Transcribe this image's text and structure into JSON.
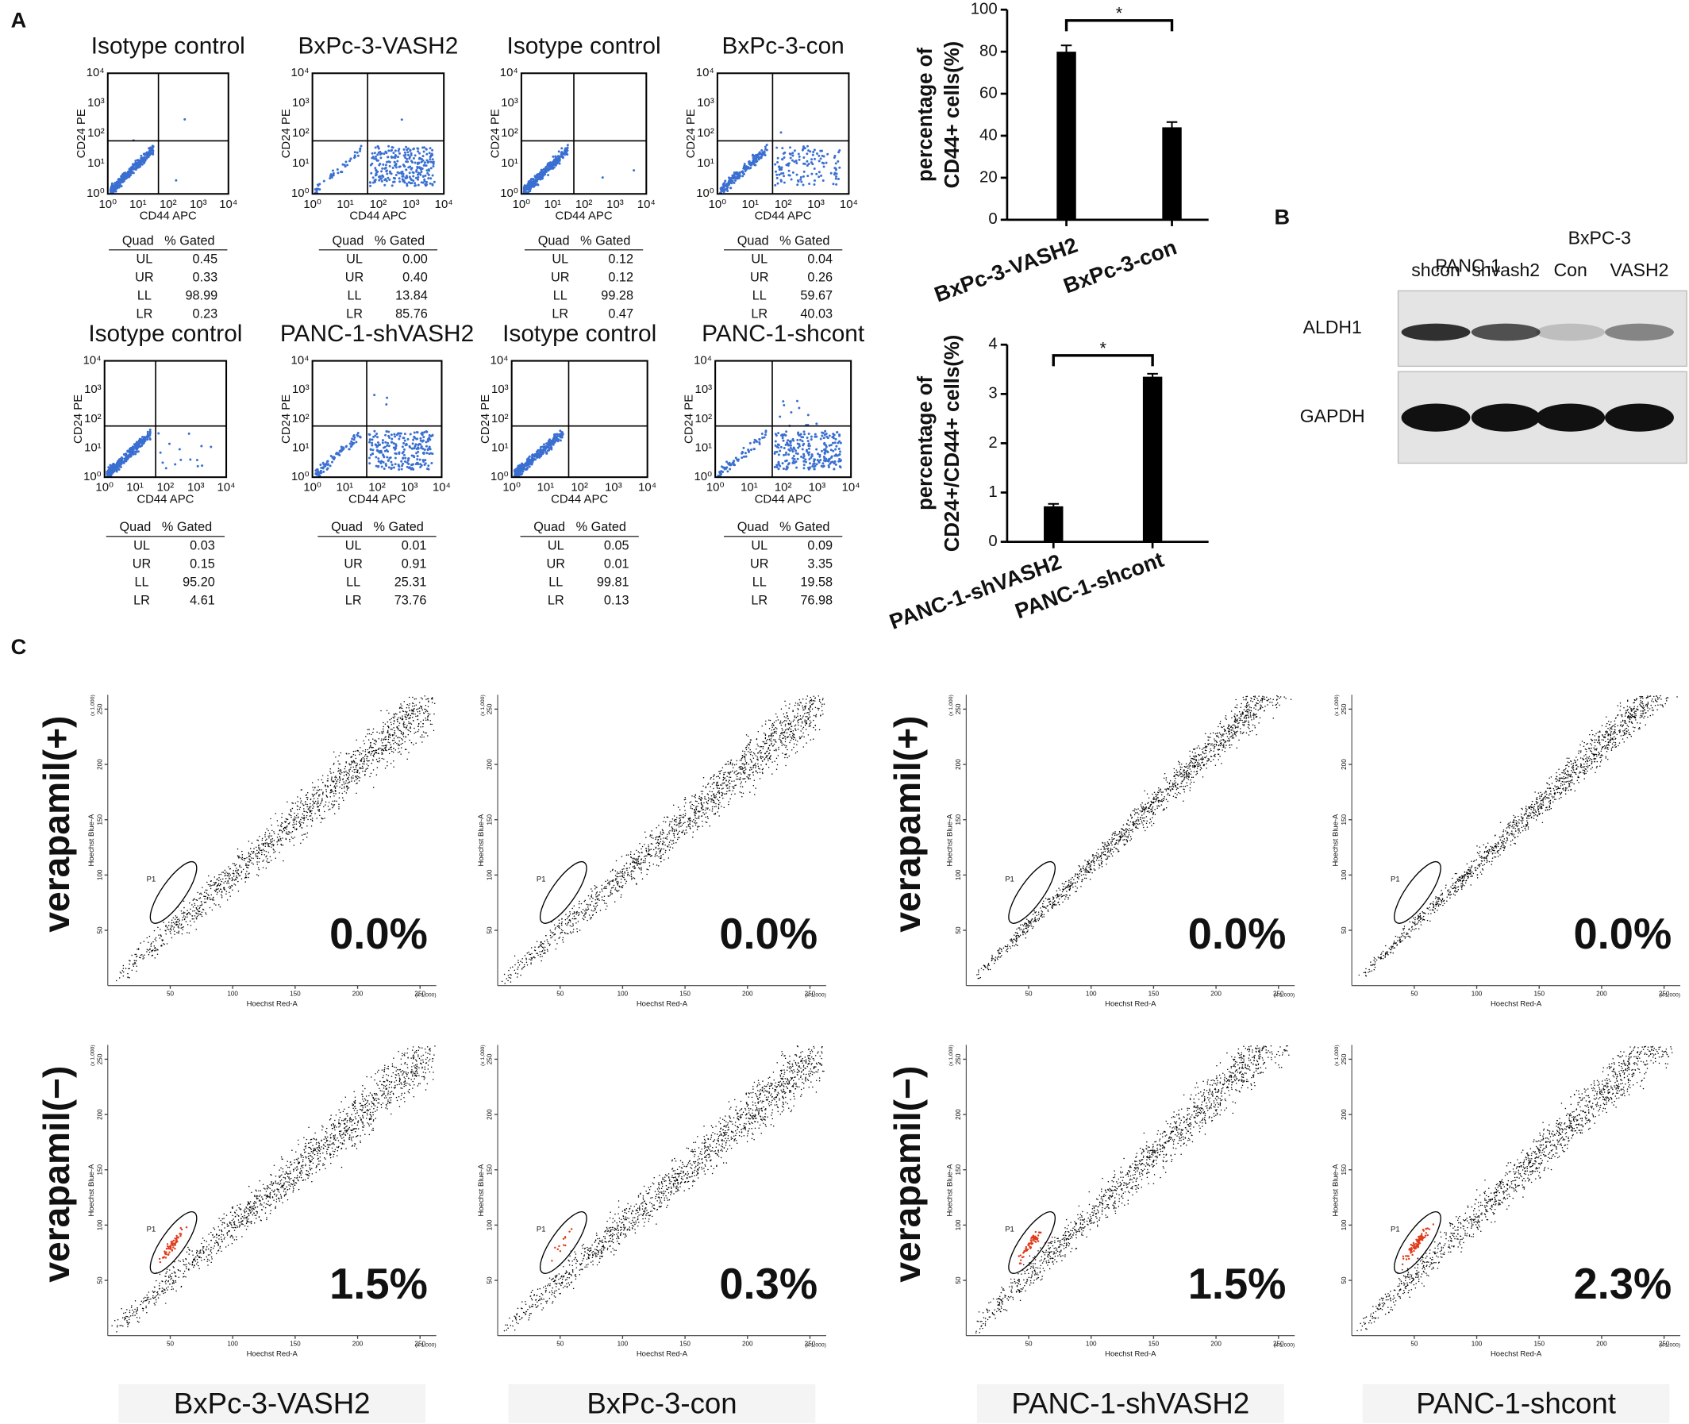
{
  "panel_labels": [
    "A",
    "B",
    "C"
  ],
  "flow_cytometry": {
    "x_label": "CD44 APC",
    "y_label": "CD24 PE",
    "ticks": [
      "10⁰",
      "10¹",
      "10²",
      "10³",
      "10⁴"
    ],
    "table_header": [
      "Quad",
      "% Gated"
    ],
    "quadrants": [
      "UL",
      "UR",
      "LL",
      "LR"
    ],
    "plots": [
      {
        "title": "Isotype control",
        "values": [
          "0.45",
          "0.33",
          "98.99",
          "0.23"
        ]
      },
      {
        "title": "BxPc-3-VASH2",
        "values": [
          "0.00",
          "0.40",
          "13.84",
          "85.76"
        ]
      },
      {
        "title": "Isotype control",
        "values": [
          "0.12",
          "0.12",
          "99.28",
          "0.47"
        ]
      },
      {
        "title": "BxPc-3-con",
        "values": [
          "0.04",
          "0.26",
          "59.67",
          "40.03"
        ]
      },
      {
        "title": "Isotype control",
        "values": [
          "0.03",
          "0.15",
          "95.20",
          "4.61"
        ]
      },
      {
        "title": "PANC-1-shVASH2",
        "values": [
          "0.01",
          "0.91",
          "25.31",
          "73.76"
        ]
      },
      {
        "title": "Isotype control",
        "values": [
          "0.05",
          "0.01",
          "99.81",
          "0.13"
        ]
      },
      {
        "title": "PANC-1-shcont",
        "values": [
          "0.09",
          "3.35",
          "19.58",
          "76.98"
        ]
      }
    ]
  },
  "chart_data": [
    {
      "type": "bar",
      "ylabel": [
        "percentage of",
        "CD44+ cells(%)"
      ],
      "categories": [
        "BxPc-3-VASH2",
        "BxPc-3-con"
      ],
      "values": [
        80,
        44
      ],
      "errors": [
        3,
        2.5
      ],
      "color": "#000000",
      "ylim": [
        0,
        100
      ],
      "yticks": [
        0,
        20,
        40,
        60,
        80,
        100
      ],
      "annotation": "*"
    },
    {
      "type": "bar",
      "ylabel": [
        "percentage of",
        "CD24+/CD44+ cells(%)"
      ],
      "categories": [
        "PANC-1-shVASH2",
        "PANC-1-shcont"
      ],
      "values": [
        0.72,
        3.35
      ],
      "errors": [
        0.05,
        0.06
      ],
      "color": "#000000",
      "ylim": [
        0,
        4
      ],
      "yticks": [
        0,
        1,
        2,
        3,
        4
      ],
      "annotation": "*"
    }
  ],
  "western_blot": {
    "groups": [
      "PANC-1",
      "BxPC-3"
    ],
    "lanes": [
      "shcon",
      "shvash2",
      "Con",
      "VASH2"
    ],
    "rows": [
      "ALDH1",
      "GAPDH"
    ]
  },
  "side_population": {
    "x_label": "Hoechst Red-A",
    "y_label": "Hoechst Blue-A",
    "scale_note": "(x 1,000)",
    "gate": "P1",
    "xlim": [
      0,
      263
    ],
    "xticks": [
      50,
      100,
      150,
      200,
      250
    ],
    "ylim": [
      0,
      263
    ],
    "yticks": [
      50,
      100,
      150,
      200,
      250
    ],
    "rows": [
      "verapamil(+)",
      "verapamil(−)"
    ],
    "columns": [
      "BxPc-3-VASH2",
      "BxPc-3-con",
      "PANC-1-shVASH2",
      "PANC-1-shcont"
    ],
    "percentages": [
      [
        "0.0%",
        "0.0%",
        "0.0%",
        "0.0%"
      ],
      [
        "1.5%",
        "0.3%",
        "1.5%",
        "2.3%"
      ]
    ]
  }
}
